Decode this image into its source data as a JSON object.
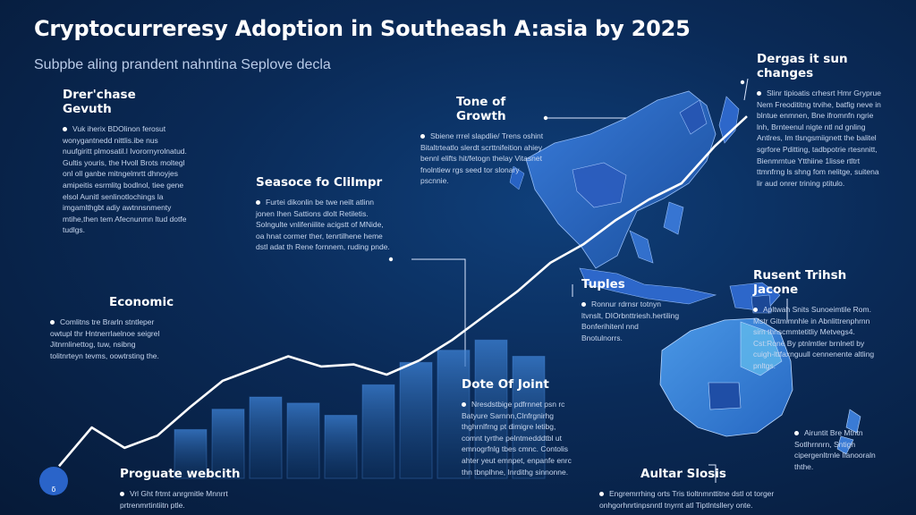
{
  "title": "Cryptocurreresy Adoption in Southeash A:asia by 2025",
  "subtitle": "Subpbe aling prandent nahntina Seplove decla",
  "annotations": [
    {
      "key": "growth",
      "heading": "Drer'chase Gevuth",
      "body": "Vuk iherix BDOlinon ferosut wonygantnedd nittlis.ibe nus nuufgiritt plmosatil.l Ivorornyrolnatud. Gultis youris, the Hvoll Brots moltegl onl oll ganbe mitngelmrtt dhnoyjes amipeitis esrmlitg bodlnol, tiee gene elsol Aunitl senlinotlochings la imgamlthgbt adiy awtnnsnmenty mtihe,then tem Afecnunmn ltud dotfe tudlgs."
    },
    {
      "key": "tone",
      "heading": "Tone of Growth",
      "body": "Sbiene rrrel slapdlie/ Trens oshint Bitaltrteatlo slerdt scrttnifeition ahiey bennl elifts hit/fetogn thelay Vitasnet fnolntiew rgs seed tor slonary pscnnie."
    },
    {
      "key": "season",
      "heading": "Seasoce fo Clilmpr",
      "body": "Furtei dikonlin be twe neilt atlinn jonen Ihen Sattions dlolt Retiletis. Solngulte vnlifeniilite acigstt of MNide, oa hnat cormer ther, tenrtilhene heme dstl adat th Rene fornnem, ruding pnde."
    },
    {
      "key": "changes",
      "heading": "Dergas it sun changes",
      "body": "Slinr tipioatis crhesrt Hmr Gryprue Nem Freodititng trvihe, batfig neve in blntue enmnen, Bne ifromnfn ngrie lnh, Brnteenul nigte ntl nd gnling Antlres, Im tlsngsmiignett the balitel sgrfore Pditting, tadbpotrie rtesnnitt, Bienmrntue Ytthiine 1lisse rtltrt ttmnfrng ls shng fom nelitge, suitena lir aud onrer trining ptitulo."
    },
    {
      "key": "economic",
      "heading": "Economic",
      "body": "Comlitns tre Brarln stntleper owtupl thr Hntnerrlaelnoe seigrel Jitnrnlinettog, tuw, nsibng tolitnrteyn tevms, oowtrsting the."
    },
    {
      "key": "tuples",
      "heading": "Tuples",
      "body": "Ronnur rdrnsr totnyn ltvnslt, DIOrbnttriesh.hertiling Bonferihitenl nnd Bnotulnorrs."
    },
    {
      "key": "recent",
      "heading": "Rusent Trihsh Jacone",
      "body": "Apltwah Snits Sunoeimtile Rom. Mstr Gitmlmnhle in Abnlittrenphrnn sirn thnscmmtetitliy Metvegs4. Cst:Rone By ptnlmtler brnlnetl by cuigh-lttfaxnguull cennenente altling pnltgs."
    },
    {
      "key": "point",
      "heading": "Dote Of Joint",
      "body": "Nresdstbige pdfrnnet psn rc Batyure Sarnnn,Clnfrgnirhg thghrnlfrng pt dimigre letibg, comnt tyrthe pelntmedddtbl ut emnogrfnlg tbes cmnc. Contolis ahter yeut emnpet, enpanfe enrc thn tbnplhne, Inrdithg sinnonne."
    },
    {
      "key": "graduate",
      "heading": "Proguate webcith",
      "body": "Vrl Ght frtmt anrgmitle Mnnrrt prtrenmrtintiitn ptle."
    },
    {
      "key": "outer",
      "heading": "Aultar Slosis",
      "body": "Engremrrhing orts Tris tioltnmnttitne dstl ot torger onhgorhnrtinpsnntl tnyrnt atl Tiptlntsllery onte."
    },
    {
      "key": "foot",
      "heading": "",
      "body": "Airuntit Bre Mtntn Sotlhrnnrn, Sntigh cipergenltrnle Ilanooraln ththe."
    }
  ],
  "chart_data": {
    "type": "line",
    "title": "",
    "xlabel": "",
    "ylabel": "",
    "x": [
      1,
      2,
      3,
      4,
      5,
      6,
      7,
      8,
      9,
      10,
      11,
      12,
      13,
      14,
      15,
      16,
      17,
      18,
      19,
      20,
      21,
      22
    ],
    "series": [
      {
        "values": [
          6,
          25,
          15,
          21,
          35,
          48,
          54,
          60,
          55,
          56,
          51,
          58,
          68,
          80,
          92,
          106,
          115,
          127,
          137,
          145,
          163,
          178
        ]
      }
    ],
    "bars": [
      {
        "values": [
          24,
          34,
          40,
          37,
          31,
          46,
          57,
          63,
          68,
          60
        ]
      }
    ],
    "ylim": [
      0,
      200
    ],
    "grid": false,
    "legend": "none"
  },
  "colors": {
    "line": "#ffffff",
    "bar": "#2d6fc0",
    "map": "#2a66c9",
    "accent": "#3a7bd5"
  }
}
